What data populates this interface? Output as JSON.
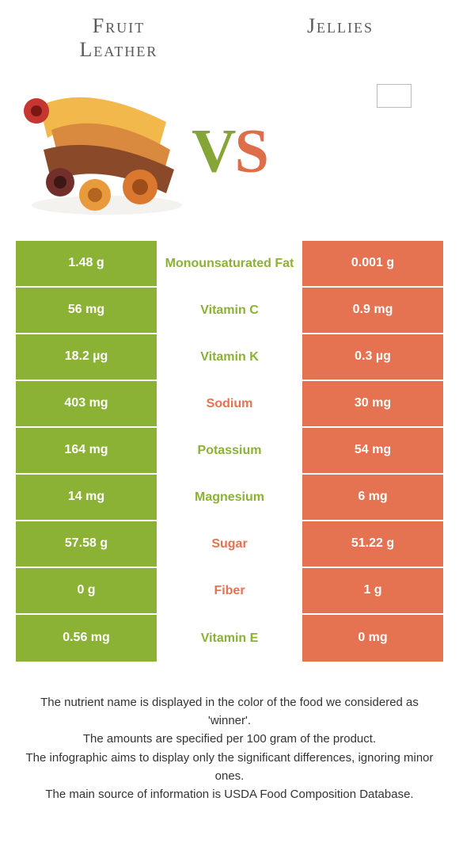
{
  "colors": {
    "green": "#8bb135",
    "coral": "#e57251",
    "title_text": "#5a5956",
    "body_text": "#333"
  },
  "foods": {
    "left": {
      "name": "Fruit\nLeather"
    },
    "right": {
      "name": "Jellies"
    }
  },
  "vs": {
    "v": "V",
    "s": "S"
  },
  "table": {
    "left_bg": "bg-green",
    "right_bg": "bg-coral",
    "rows": [
      {
        "left": "1.48 g",
        "label": "Monounsaturated Fat",
        "right": "0.001 g",
        "winner": "green"
      },
      {
        "left": "56 mg",
        "label": "Vitamin C",
        "right": "0.9 mg",
        "winner": "green"
      },
      {
        "left": "18.2 µg",
        "label": "Vitamin K",
        "right": "0.3 µg",
        "winner": "green"
      },
      {
        "left": "403 mg",
        "label": "Sodium",
        "right": "30 mg",
        "winner": "coral"
      },
      {
        "left": "164 mg",
        "label": "Potassium",
        "right": "54 mg",
        "winner": "green"
      },
      {
        "left": "14 mg",
        "label": "Magnesium",
        "right": "6 mg",
        "winner": "green"
      },
      {
        "left": "57.58 g",
        "label": "Sugar",
        "right": "51.22 g",
        "winner": "coral"
      },
      {
        "left": "0 g",
        "label": "Fiber",
        "right": "1 g",
        "winner": "coral"
      },
      {
        "left": "0.56 mg",
        "label": "Vitamin E",
        "right": "0 mg",
        "winner": "green"
      }
    ]
  },
  "footer": {
    "l1": "The nutrient name is displayed in the color of the food we considered as 'winner'.",
    "l2": "The amounts are specified per 100 gram of the product.",
    "l3": "The infographic aims to display only the significant differences, ignoring minor ones.",
    "l4": "The main source of information is USDA Food Composition Database."
  }
}
